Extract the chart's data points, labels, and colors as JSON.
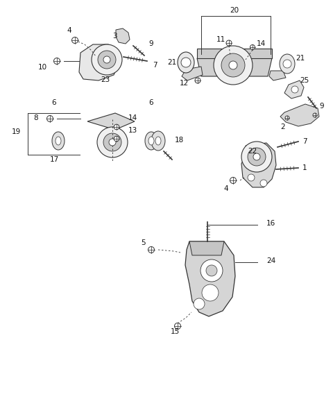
{
  "background_color": "#ffffff",
  "fig_width": 4.8,
  "fig_height": 5.78,
  "dpi": 100,
  "line_color": "#333333",
  "fill_light": "#e8e8e8",
  "fill_mid": "#cccccc",
  "fill_dark": "#aaaaaa",
  "font_size": 7.5
}
